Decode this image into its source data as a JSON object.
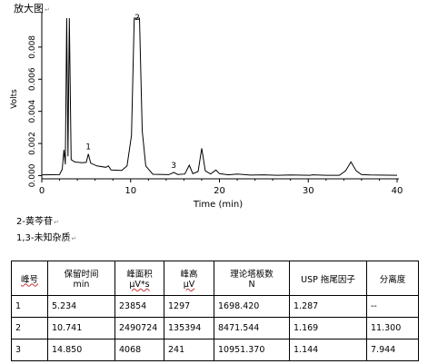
{
  "page": {
    "heading": "放大图",
    "para_mark": "↵"
  },
  "chart_data": {
    "type": "line",
    "xlabel": "Time (min)",
    "ylabel": "Volts",
    "xlim": [
      0,
      40
    ],
    "ylim": [
      -0.0002,
      0.0098
    ],
    "x_ticks": [
      0,
      10,
      20,
      30,
      40
    ],
    "y_ticks": [
      0.0,
      0.002,
      0.004,
      0.006,
      0.008
    ],
    "y_tick_labels": [
      "0.000",
      "0.002",
      "0.004",
      "0.006",
      "0.008"
    ],
    "grid": false,
    "baseline": [
      [
        0,
        5e-05
      ],
      [
        2.0,
        6e-05
      ],
      [
        2.3,
        0.0004
      ],
      [
        2.5,
        0.0016
      ],
      [
        2.65,
        0.0007
      ],
      [
        2.8,
        0.0098
      ],
      [
        2.95,
        0.0012
      ],
      [
        3.1,
        0.0098
      ],
      [
        3.3,
        0.001
      ],
      [
        3.7,
        0.00085
      ],
      [
        4.5,
        0.0008
      ],
      [
        5.0,
        0.00082
      ],
      [
        5.234,
        0.00135
      ],
      [
        5.5,
        0.00078
      ],
      [
        6.2,
        0.0006
      ],
      [
        7.2,
        0.00052
      ],
      [
        7.5,
        0.0006
      ],
      [
        7.8,
        0.00035
      ],
      [
        9.0,
        0.00032
      ],
      [
        9.6,
        0.0006
      ],
      [
        10.1,
        0.0025
      ],
      [
        10.4,
        0.0098
      ],
      [
        11.0,
        0.0098
      ],
      [
        11.3,
        0.0028
      ],
      [
        11.7,
        0.0006
      ],
      [
        12.5,
        8e-05
      ],
      [
        14.3,
        6e-05
      ],
      [
        14.85,
        0.0002
      ],
      [
        15.3,
        7e-05
      ],
      [
        16.1,
        0.0001
      ],
      [
        16.6,
        0.00065
      ],
      [
        17.0,
        0.00012
      ],
      [
        17.6,
        0.00025
      ],
      [
        18.0,
        0.0017
      ],
      [
        18.4,
        0.0003
      ],
      [
        19.0,
        0.0001
      ],
      [
        19.6,
        0.00035
      ],
      [
        20.0,
        0.00012
      ],
      [
        21.0,
        5e-05
      ],
      [
        22.0,
        0.0001
      ],
      [
        23.5,
        3e-05
      ],
      [
        25.0,
        5e-05
      ],
      [
        26.5,
        2e-05
      ],
      [
        28.0,
        4e-05
      ],
      [
        30.2,
        2e-05
      ],
      [
        30.5,
        5e-05
      ],
      [
        32.0,
        2e-05
      ],
      [
        33.5,
        2e-05
      ],
      [
        34.2,
        0.0003
      ],
      [
        34.8,
        0.00085
      ],
      [
        35.4,
        0.0003
      ],
      [
        36.0,
        6e-05
      ],
      [
        37.0,
        4e-05
      ],
      [
        40.0,
        2e-05
      ]
    ],
    "peak_labels": [
      {
        "text": "1",
        "x": 5.234,
        "y": 0.00135
      },
      {
        "text": "3",
        "x": 14.85,
        "y": 0.0002
      },
      {
        "text": "2",
        "x": 10.741,
        "y": 0.0098
      }
    ]
  },
  "notes": [
    "2-黄芩苷",
    "1,3-未知杂质"
  ],
  "table": {
    "headers": [
      [
        "峰号",
        ""
      ],
      [
        "保留时间",
        "min"
      ],
      [
        "峰面积",
        "μV*s"
      ],
      [
        "峰高",
        "μV"
      ],
      [
        "理论塔板数",
        "N"
      ],
      [
        "USP 拖尾因子",
        ""
      ],
      [
        "分离度",
        ""
      ]
    ],
    "rows": [
      [
        "1",
        "5.234",
        "23854",
        "1297",
        "1698.420",
        "1.287",
        "--"
      ],
      [
        "2",
        "10.741",
        "2490724",
        "135394",
        "8471.544",
        "1.169",
        "11.300"
      ],
      [
        "3",
        "14.850",
        "4068",
        "241",
        "10951.370",
        "1.144",
        "7.944"
      ]
    ]
  }
}
